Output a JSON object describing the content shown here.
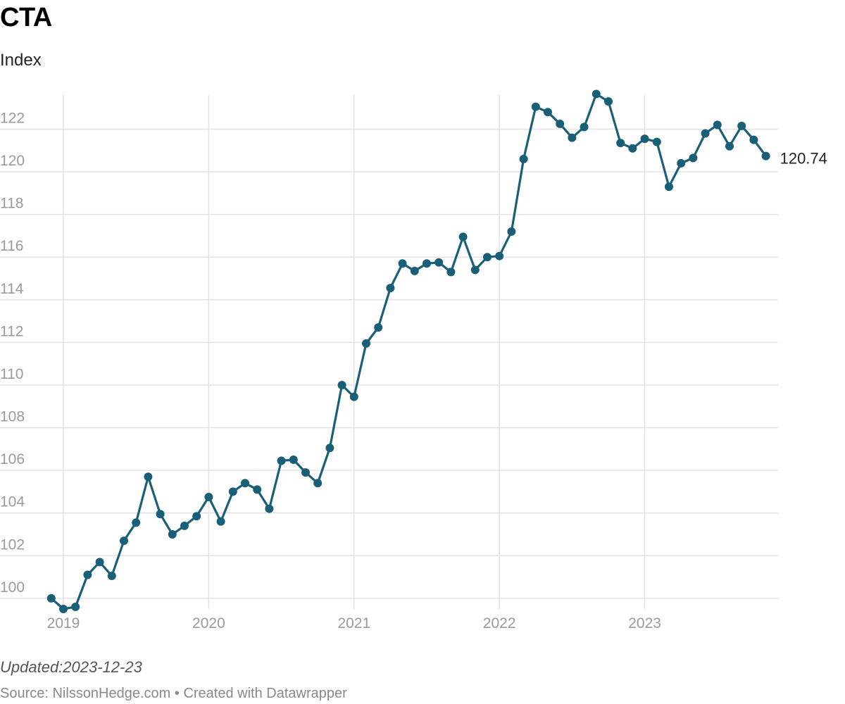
{
  "header": {
    "title": "CTA",
    "subtitle": "Index"
  },
  "footer": {
    "updated": "Updated:2023-12-23",
    "source": "Source: NilssonHedge.com • Created with Datawrapper"
  },
  "colors": {
    "line": "#1a5f78",
    "grid": "#e3e3e3",
    "tick_text": "#9a9a9a"
  },
  "chart_data": {
    "type": "line",
    "title": "CTA",
    "subtitle": "Index",
    "xlabel": "",
    "ylabel": "",
    "x_ticks": [
      "2019",
      "2020",
      "2021",
      "2022",
      "2023"
    ],
    "y_ticks": [
      100,
      102,
      104,
      106,
      108,
      110,
      112,
      114,
      116,
      118,
      120,
      122
    ],
    "ylim": [
      99.5,
      123.6
    ],
    "grid": true,
    "legend": "none",
    "end_label": "120.74",
    "series": [
      {
        "x": [
          "2018-12",
          "2019-01",
          "2019-02",
          "2019-03",
          "2019-04",
          "2019-05",
          "2019-06",
          "2019-07",
          "2019-08",
          "2019-09",
          "2019-10",
          "2019-11",
          "2019-12",
          "2020-01",
          "2020-02",
          "2020-03",
          "2020-04",
          "2020-05",
          "2020-06",
          "2020-07",
          "2020-08",
          "2020-09",
          "2020-10",
          "2020-11",
          "2020-12",
          "2021-01",
          "2021-02",
          "2021-03",
          "2021-04",
          "2021-05",
          "2021-06",
          "2021-07",
          "2021-08",
          "2021-09",
          "2021-10",
          "2021-11",
          "2021-12",
          "2022-01",
          "2022-02",
          "2022-03",
          "2022-04",
          "2022-05",
          "2022-06",
          "2022-07",
          "2022-08",
          "2022-09",
          "2022-10",
          "2022-11",
          "2022-12",
          "2023-01",
          "2023-02",
          "2023-03",
          "2023-04",
          "2023-05",
          "2023-06",
          "2023-07",
          "2023-08",
          "2023-09",
          "2023-10",
          "2023-11"
        ],
        "values": [
          100.0,
          99.5,
          99.6,
          101.1,
          101.7,
          101.05,
          102.7,
          103.55,
          105.7,
          103.95,
          103.0,
          103.4,
          103.85,
          104.75,
          103.6,
          105.0,
          105.4,
          105.1,
          104.2,
          106.45,
          106.5,
          105.9,
          105.4,
          107.05,
          110.0,
          109.45,
          111.95,
          112.7,
          114.55,
          115.7,
          115.35,
          115.7,
          115.75,
          115.3,
          116.95,
          115.4,
          116.0,
          116.05,
          117.2,
          120.6,
          123.05,
          122.8,
          122.25,
          121.6,
          122.1,
          123.65,
          123.3,
          121.35,
          121.1,
          121.55,
          121.4,
          119.3,
          120.4,
          120.65,
          121.8,
          122.2,
          121.2,
          122.15,
          121.5,
          120.74
        ]
      }
    ]
  }
}
